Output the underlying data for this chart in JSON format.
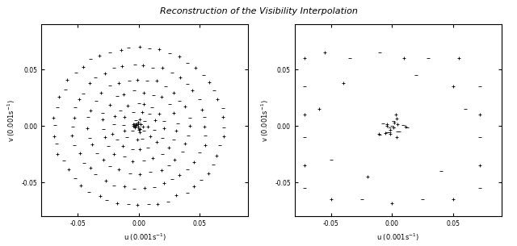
{
  "title": "Reconstruction of the Visibility Interpolation",
  "xlabel": "u (0.001s$^{-1}$)",
  "ylabel": "v (0.001s$^{-1}$)",
  "xlim": [
    -0.08,
    0.09
  ],
  "ylim": [
    -0.08,
    0.09
  ],
  "xticks": [
    -0.05,
    0.0,
    0.05
  ],
  "yticks": [
    -0.05,
    0.0,
    0.05
  ],
  "bg_color": "#ffffff",
  "marker_color": "#000000",
  "title_fontsize": 8,
  "label_fontsize": 6,
  "tick_fontsize": 5.5
}
